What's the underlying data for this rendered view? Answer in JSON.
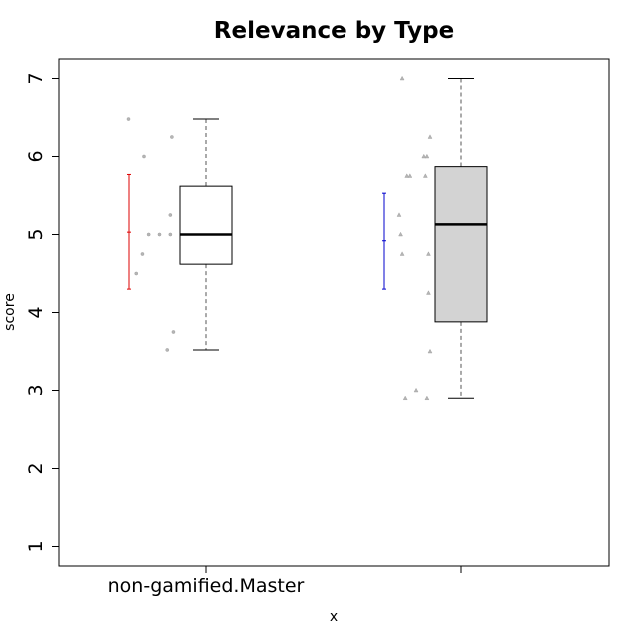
{
  "chart_data": {
    "type": "boxplot",
    "title": "Relevance by Type",
    "xlabel": "x",
    "ylabel": "score",
    "ylim": [
      0.75,
      7.25
    ],
    "yticks": [
      1,
      2,
      3,
      4,
      5,
      6,
      7
    ],
    "categories": [
      "non-gamified.Master",
      ""
    ],
    "groups": [
      {
        "name": "non-gamified.Master",
        "box_fill": "#ffffff",
        "errorbar_color": "#dd0000",
        "whisker_low": 3.52,
        "q1": 4.62,
        "median": 5.0,
        "q3": 5.62,
        "whisker_high": 6.48,
        "ci_low": 4.3,
        "ci_mean": 5.03,
        "ci_high": 5.77,
        "points": [
          [
            -0.5,
            6.48
          ],
          [
            -0.4,
            6.0
          ],
          [
            -0.37,
            5.0
          ],
          [
            -0.45,
            4.5
          ],
          [
            -0.41,
            4.75
          ],
          [
            -0.3,
            5.0
          ],
          [
            -0.25,
            3.52
          ],
          [
            -0.23,
            5.25
          ],
          [
            -0.22,
            6.25
          ],
          [
            -0.23,
            5.0
          ],
          [
            -0.21,
            3.75
          ]
        ]
      },
      {
        "name": "",
        "box_fill": "#d3d3d3",
        "errorbar_color": "#0000cc",
        "whisker_low": 2.9,
        "q1": 3.88,
        "median": 5.13,
        "q3": 5.87,
        "whisker_high": 7.0,
        "ci_low": 4.3,
        "ci_mean": 4.92,
        "ci_high": 5.53,
        "points": [
          [
            -0.38,
            7.0
          ],
          [
            -0.4,
            5.25
          ],
          [
            -0.39,
            5.0
          ],
          [
            -0.38,
            4.75
          ],
          [
            -0.36,
            2.9
          ],
          [
            -0.35,
            5.75
          ],
          [
            -0.33,
            5.75
          ],
          [
            -0.29,
            3.0
          ],
          [
            -0.24,
            6.0
          ],
          [
            -0.23,
            5.75
          ],
          [
            -0.22,
            6.0
          ],
          [
            -0.21,
            4.25
          ],
          [
            -0.21,
            4.75
          ],
          [
            -0.22,
            2.9
          ],
          [
            -0.2,
            6.25
          ],
          [
            -0.2,
            3.5
          ]
        ]
      }
    ]
  }
}
